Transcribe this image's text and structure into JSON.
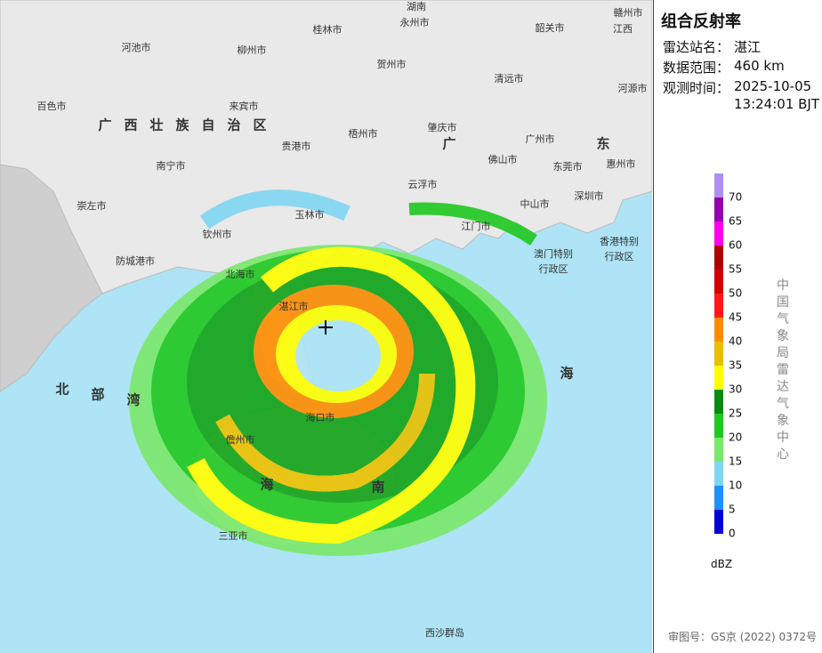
{
  "title": "组合反射率",
  "info": [
    {
      "label": "雷达站名：",
      "value": [
        "湛江"
      ]
    },
    {
      "label": "数据范围：",
      "value": [
        "460 km"
      ]
    },
    {
      "label": "观测时间：",
      "value": [
        "2025-10-05",
        "13:24:01 BJT"
      ]
    }
  ],
  "legend": {
    "unit": "dBZ",
    "levels": [
      {
        "value": 0,
        "color": "#0000d8"
      },
      {
        "value": 5,
        "color": "#1e90ff"
      },
      {
        "value": 10,
        "color": "#7fd6f2"
      },
      {
        "value": 15,
        "color": "#7ae86a"
      },
      {
        "value": 20,
        "color": "#20c820"
      },
      {
        "value": 25,
        "color": "#0a8a12"
      },
      {
        "value": 30,
        "color": "#ffff00"
      },
      {
        "value": 35,
        "color": "#e8c000"
      },
      {
        "value": 40,
        "color": "#ff8c00"
      },
      {
        "value": 45,
        "color": "#ff1a1a"
      },
      {
        "value": 50,
        "color": "#d60000"
      },
      {
        "value": 55,
        "color": "#b00000"
      },
      {
        "value": 60,
        "color": "#ff00f0"
      },
      {
        "value": 65,
        "color": "#9400b0"
      },
      {
        "value": 70,
        "color": "#ae90f0"
      }
    ]
  },
  "agency": "中国气象局雷达气象中心",
  "credit": "审图号：GS京 (2022) 0372号",
  "map": {
    "labels": [
      [
        "湖南"
      ],
      [
        "永州市"
      ],
      [
        "赣州市"
      ],
      [
        "江西"
      ],
      [
        "河池市"
      ],
      [
        "桂林市"
      ],
      [
        "韶关市"
      ],
      [
        "柳州市"
      ],
      [
        "贺州市"
      ],
      [
        "河源市"
      ],
      [
        "百色市"
      ],
      [
        "来宾市"
      ],
      [
        "清远市"
      ],
      [
        "广西壮族自治区"
      ],
      [
        "贵港市"
      ],
      [
        "梧州市"
      ],
      [
        "肇庆市"
      ],
      [
        "广"
      ],
      [
        "广州市"
      ],
      [
        "东"
      ],
      [
        "南宁市"
      ],
      [
        "佛山市"
      ],
      [
        "东莞市"
      ],
      [
        "惠州市"
      ],
      [
        "崇左市"
      ],
      [
        "云浮市"
      ],
      [
        "中山市"
      ],
      [
        "深圳市"
      ],
      [
        "钦州市"
      ],
      [
        "玉林市"
      ],
      [
        "江门市"
      ],
      [
        "防城港市"
      ],
      [
        "北海市"
      ],
      [
        "澳门特别",
        "行政区"
      ],
      [
        "香港特别",
        "行政区"
      ],
      [
        "湛江市"
      ],
      [
        "北"
      ],
      [
        "部"
      ],
      [
        "湾"
      ],
      [
        "海"
      ],
      [
        "海口市"
      ],
      [
        "儋州市"
      ],
      [
        "海"
      ],
      [
        "南"
      ],
      [
        "三亚市"
      ],
      [
        "西沙群岛"
      ]
    ]
  }
}
